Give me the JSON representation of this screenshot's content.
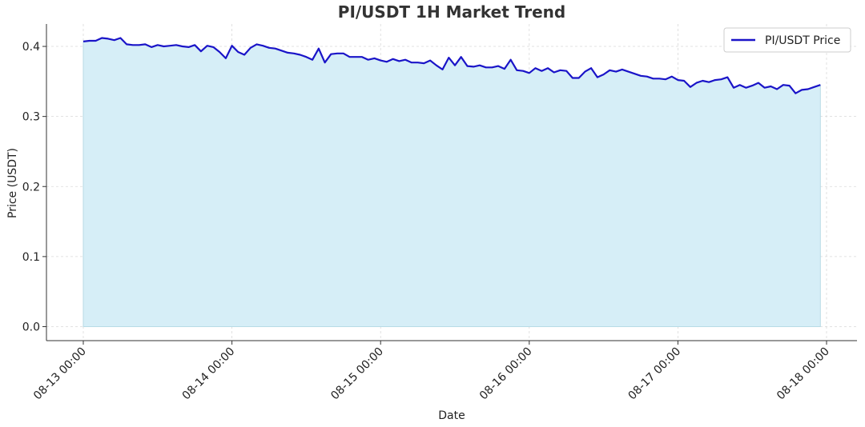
{
  "chart_data": {
    "type": "area",
    "title": "PI/USDT 1H Market Trend",
    "xlabel": "Date",
    "ylabel": "Price (USDT)",
    "x_ticks": [
      "08-13 00:00",
      "08-14 00:00",
      "08-15 00:00",
      "08-16 00:00",
      "08-17 00:00",
      "08-18 00:00"
    ],
    "y_ticks": [
      "0.0",
      "0.1",
      "0.2",
      "0.3",
      "0.4"
    ],
    "xlim": [
      "08-12 21:00",
      "08-18 03:00"
    ],
    "ylim": [
      -0.02,
      0.432
    ],
    "grid": true,
    "legend_position": "top-right",
    "colors": {
      "line": "#1a14c8",
      "fill": "#d6eef7",
      "grid": "#d9d9d9"
    },
    "series": [
      {
        "name": "PI/USDT Price",
        "x_start": "08-13 00:00",
        "interval_hours": 1,
        "values": [
          0.407,
          0.408,
          0.408,
          0.412,
          0.411,
          0.409,
          0.412,
          0.403,
          0.402,
          0.402,
          0.403,
          0.399,
          0.402,
          0.4,
          0.401,
          0.402,
          0.4,
          0.399,
          0.402,
          0.393,
          0.401,
          0.399,
          0.392,
          0.383,
          0.401,
          0.392,
          0.388,
          0.398,
          0.403,
          0.401,
          0.398,
          0.397,
          0.394,
          0.391,
          0.39,
          0.388,
          0.385,
          0.381,
          0.397,
          0.377,
          0.389,
          0.39,
          0.39,
          0.385,
          0.385,
          0.385,
          0.381,
          0.383,
          0.38,
          0.378,
          0.382,
          0.379,
          0.381,
          0.377,
          0.377,
          0.376,
          0.38,
          0.373,
          0.367,
          0.384,
          0.373,
          0.385,
          0.372,
          0.371,
          0.373,
          0.37,
          0.37,
          0.372,
          0.368,
          0.381,
          0.366,
          0.365,
          0.362,
          0.369,
          0.365,
          0.369,
          0.363,
          0.366,
          0.365,
          0.355,
          0.355,
          0.364,
          0.369,
          0.356,
          0.36,
          0.366,
          0.364,
          0.367,
          0.364,
          0.361,
          0.358,
          0.357,
          0.354,
          0.354,
          0.353,
          0.357,
          0.352,
          0.351,
          0.342,
          0.348,
          0.351,
          0.349,
          0.352,
          0.353,
          0.356,
          0.341,
          0.345,
          0.341,
          0.344,
          0.348,
          0.341,
          0.343,
          0.339,
          0.345,
          0.344,
          0.333,
          0.338,
          0.339,
          0.342,
          0.345
        ]
      }
    ]
  }
}
